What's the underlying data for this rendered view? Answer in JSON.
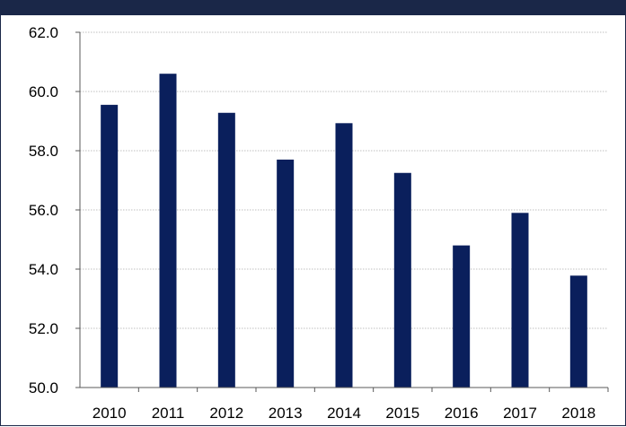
{
  "colors": {
    "header_bar": "#1a2748",
    "bar_fill": "#0a1f5c",
    "gridline": "#bfbfbf",
    "axis": "#595959"
  },
  "chart_data": {
    "type": "bar",
    "categories": [
      "2010",
      "2011",
      "2012",
      "2013",
      "2014",
      "2015",
      "2016",
      "2017",
      "2018"
    ],
    "values": [
      59.55,
      60.6,
      59.28,
      57.7,
      58.93,
      57.25,
      54.8,
      55.9,
      53.78
    ],
    "y_ticks": [
      "50.0",
      "52.0",
      "54.0",
      "56.0",
      "58.0",
      "60.0",
      "62.0"
    ],
    "ylim": [
      50,
      62
    ],
    "grid": true,
    "legend": "none"
  }
}
